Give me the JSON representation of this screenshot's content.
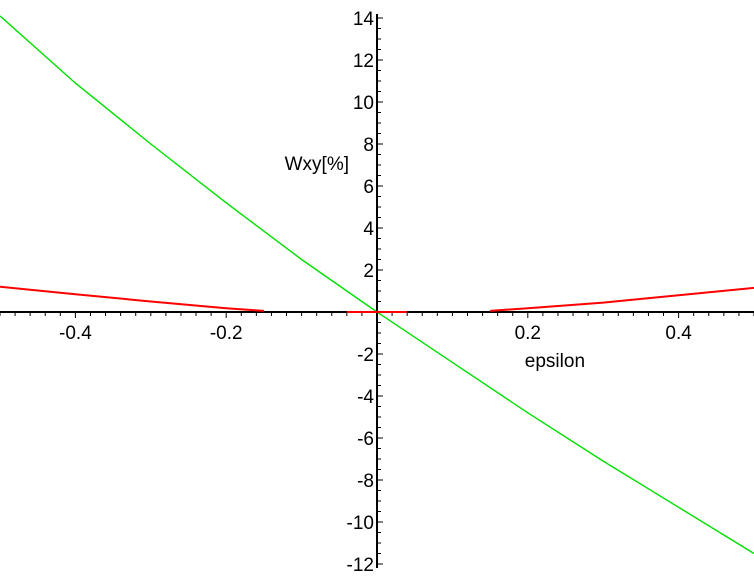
{
  "chart_data": {
    "type": "line",
    "xlabel": "epsilon",
    "ylabel": "Wxy[%]",
    "xlim": [
      -0.5,
      0.5
    ],
    "ylim": [
      -12,
      14
    ],
    "x_ticks": [
      -0.4,
      -0.2,
      0.2,
      0.4
    ],
    "x_tick_labels": [
      "-0.4",
      "-0.2",
      "0.2",
      "0.4"
    ],
    "y_ticks": [
      -12,
      -10,
      -8,
      -6,
      -4,
      -2,
      2,
      4,
      6,
      8,
      10,
      12,
      14
    ],
    "y_tick_labels": [
      "-12",
      "-10",
      "-8",
      "-6",
      "-4",
      "-2",
      "2",
      "4",
      "6",
      "8",
      "10",
      "12",
      "14"
    ],
    "grid": false,
    "series": [
      {
        "color": "#00e000",
        "x": [
          -0.5,
          -0.4,
          -0.3,
          -0.2,
          -0.1,
          0,
          0.1,
          0.2,
          0.3,
          0.4,
          0.5
        ],
        "y": [
          14.1,
          10.9,
          8.0,
          5.2,
          2.5,
          0,
          -2.4,
          -4.8,
          -7.1,
          -9.3,
          -11.5
        ]
      },
      {
        "color": "#ff0000",
        "segments": [
          {
            "x": [
              -0.5,
              -0.4,
              -0.3,
              -0.2,
              -0.15
            ],
            "y": [
              1.2,
              0.85,
              0.5,
              0.18,
              0.05
            ]
          },
          {
            "x": [
              -0.04,
              0.04
            ],
            "y": [
              0,
              0
            ]
          },
          {
            "x": [
              0.15,
              0.2,
              0.3,
              0.4,
              0.5
            ],
            "y": [
              0.05,
              0.18,
              0.45,
              0.8,
              1.15
            ]
          }
        ]
      }
    ]
  }
}
